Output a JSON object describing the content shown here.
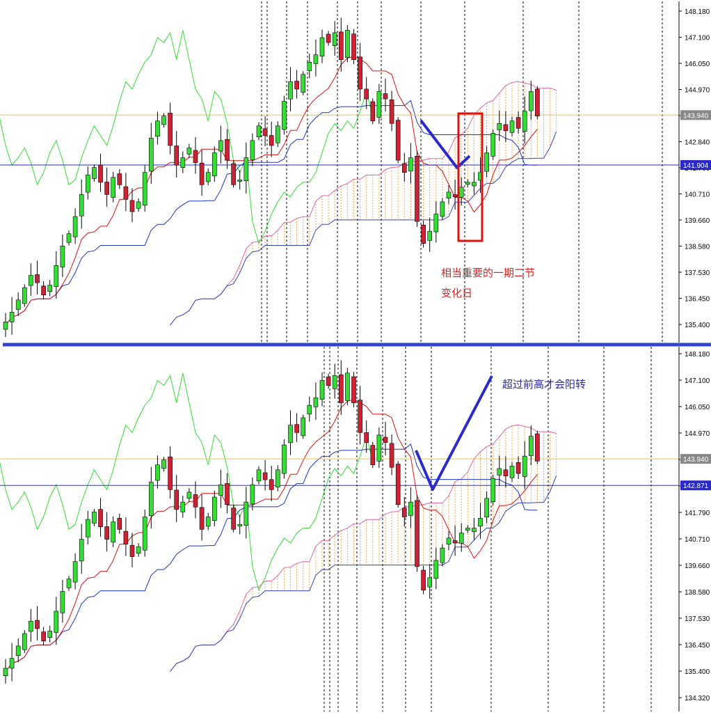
{
  "chart_data": [
    {
      "type": "candlestick",
      "yticks": [
        "148.180",
        "147.100",
        "146.050",
        "144.970",
        "143.940",
        "142.840",
        "141.760",
        "140.710",
        "139.660",
        "138.580",
        "137.530",
        "136.450",
        "135.400"
      ],
      "ylim": [
        134.9,
        148.6
      ],
      "price_labels": [
        {
          "text": "143.940",
          "value": 143.94
        },
        {
          "text": "141.904",
          "value": 141.904
        }
      ],
      "annotation": {
        "line1": "相当重要的一期二节",
        "line2": "变化日",
        "color": "#dd2222"
      }
    },
    {
      "type": "candlestick",
      "yticks": [
        "148.180",
        "147.100",
        "146.050",
        "144.970",
        "143.940",
        "142.871",
        "141.790",
        "140.710",
        "139.660",
        "138.580",
        "137.530",
        "136.450",
        "135.400",
        "134.320"
      ],
      "ylim": [
        133.95,
        148.6
      ],
      "price_labels": [
        {
          "text": "143.940",
          "value": 143.94
        },
        {
          "text": "142.871",
          "value": 142.871
        }
      ],
      "annotation": {
        "line1": "超过前高才会阳转",
        "color": "#2a2aa8"
      }
    }
  ],
  "colors": {
    "up": "#33dd33",
    "down": "#cc2233",
    "tenkan": "#dd1111",
    "kijun": "#1a33cc",
    "chikou": "#33dd33",
    "spanA": "#dd66aa",
    "spanB": "#3344bb",
    "cloud_up": "#f0a040",
    "cloud_down": "#b0b0d0",
    "level": "#f0c040",
    "highlight_line": "#2a2acc",
    "box": "#dd1111",
    "divider": "#3344cc"
  }
}
